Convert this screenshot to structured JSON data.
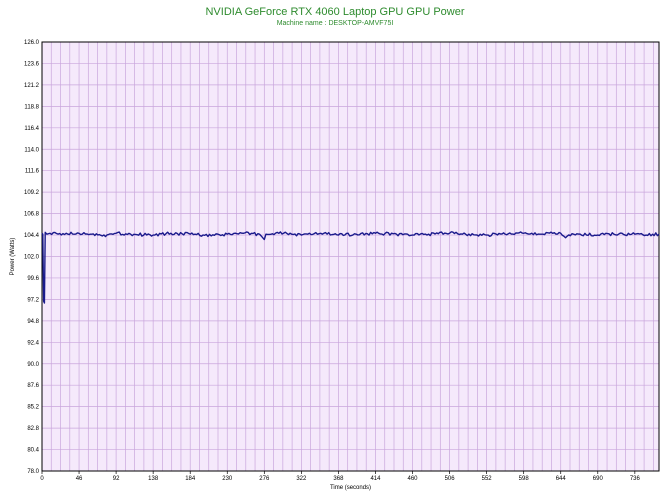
{
  "chart_data": {
    "type": "line",
    "title": "NVIDIA GeForce RTX 4060 Laptop GPU GPU Power",
    "subtitle": "Machine name : DESKTOP-AMVF75I",
    "xlabel": "Time (seconds)",
    "ylabel": "Power (Watts)",
    "xlim": [
      0,
      766
    ],
    "ylim": [
      78.0,
      126.0
    ],
    "x_ticks": [
      0,
      46,
      92,
      138,
      184,
      230,
      276,
      322,
      368,
      414,
      460,
      506,
      552,
      598,
      644,
      690,
      736
    ],
    "y_ticks": [
      "126.0",
      "123.6",
      "121.2",
      "118.8",
      "116.4",
      "114.0",
      "111.6",
      "109.2",
      "106.8",
      "104.4",
      "102.0",
      "99.6",
      "97.2",
      "94.8",
      "92.4",
      "90.0",
      "87.6",
      "85.2",
      "82.8",
      "80.4",
      "78.0"
    ],
    "grid": true,
    "background": "#f5e9fb",
    "grid_color": "#c9a6dc",
    "line_color": "#1a1a8c",
    "series": [
      {
        "baseline": 104.4,
        "points": [
          [
            0,
            104.6
          ],
          [
            1,
            104.5
          ],
          [
            2,
            97.0
          ],
          [
            3,
            96.8
          ],
          [
            4,
            104.7
          ],
          [
            6,
            104.5
          ],
          [
            10,
            104.6
          ],
          [
            20,
            104.5
          ],
          [
            30,
            104.6
          ],
          [
            40,
            104.5
          ],
          [
            46,
            104.6
          ],
          [
            60,
            104.5
          ],
          [
            75,
            104.3
          ],
          [
            92,
            104.6
          ],
          [
            110,
            104.5
          ],
          [
            138,
            104.4
          ],
          [
            160,
            104.6
          ],
          [
            184,
            104.5
          ],
          [
            210,
            104.3
          ],
          [
            230,
            104.5
          ],
          [
            250,
            104.6
          ],
          [
            270,
            104.5
          ],
          [
            276,
            103.9
          ],
          [
            278,
            104.5
          ],
          [
            300,
            104.6
          ],
          [
            322,
            104.4
          ],
          [
            330,
            104.5
          ],
          [
            350,
            104.6
          ],
          [
            368,
            104.4
          ],
          [
            390,
            104.5
          ],
          [
            414,
            104.6
          ],
          [
            440,
            104.5
          ],
          [
            460,
            104.4
          ],
          [
            480,
            104.5
          ],
          [
            506,
            104.6
          ],
          [
            530,
            104.5
          ],
          [
            552,
            104.4
          ],
          [
            575,
            104.5
          ],
          [
            598,
            104.6
          ],
          [
            620,
            104.5
          ],
          [
            644,
            104.6
          ],
          [
            650,
            104.1
          ],
          [
            660,
            104.5
          ],
          [
            690,
            104.4
          ],
          [
            710,
            104.5
          ],
          [
            736,
            104.5
          ],
          [
            750,
            104.4
          ],
          [
            766,
            104.5
          ]
        ]
      }
    ]
  }
}
